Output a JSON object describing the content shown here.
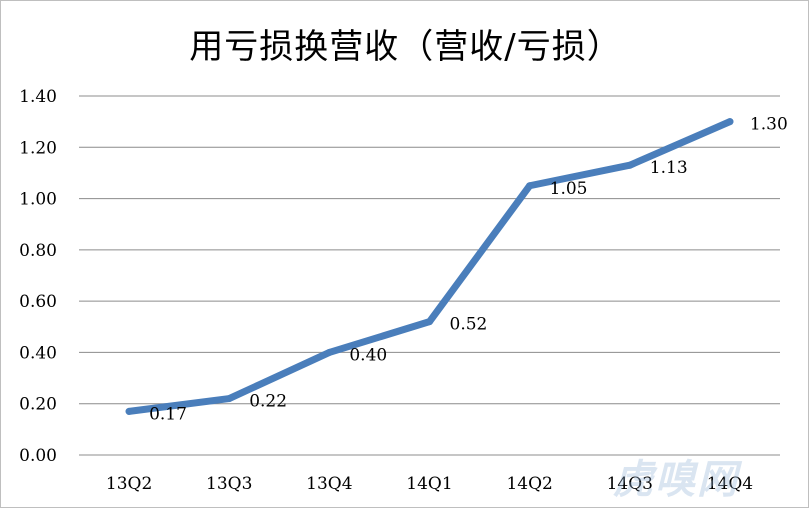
{
  "chart_data": {
    "type": "line",
    "title": "用亏损换营收（营收/亏损）",
    "categories": [
      "13Q2",
      "13Q3",
      "13Q4",
      "14Q1",
      "14Q2",
      "14Q3",
      "14Q4"
    ],
    "values": [
      0.17,
      0.22,
      0.4,
      0.52,
      1.05,
      1.13,
      1.3
    ],
    "value_labels": [
      "0.17",
      "0.22",
      "0.40",
      "0.52",
      "1.05",
      "1.13",
      "1.30"
    ],
    "ylim": [
      0,
      1.4
    ],
    "yticks": [
      0.0,
      0.2,
      0.4,
      0.6,
      0.8,
      1.0,
      1.2,
      1.4
    ],
    "ytick_labels": [
      "0.00",
      "0.20",
      "0.40",
      "0.60",
      "0.80",
      "1.00",
      "1.20",
      "1.40"
    ],
    "grid": true,
    "line_color": "#4a7ebb"
  },
  "watermark": "虎嗅网"
}
